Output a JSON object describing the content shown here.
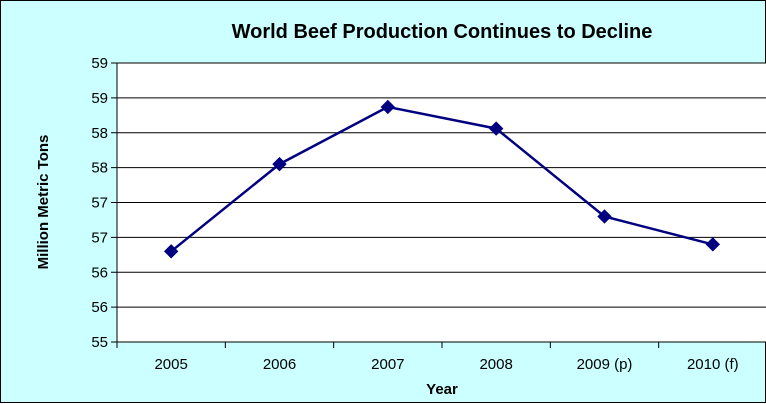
{
  "chart_data": {
    "type": "line",
    "title": "World Beef Production Continues to Decline",
    "xlabel": "Year",
    "ylabel": "Million Metric Tons",
    "categories": [
      "2005",
      "2006",
      "2007",
      "2008",
      "2009 (p)",
      "2010 (f)"
    ],
    "series": [
      {
        "values": [
          56.3,
          57.55,
          58.37,
          58.06,
          56.8,
          56.4
        ]
      }
    ],
    "ylim": [
      55,
      59
    ],
    "y_tick_labels": [
      "55",
      "56",
      "56",
      "57",
      "57",
      "58",
      "58",
      "59",
      "59"
    ],
    "grid": "horizontal",
    "colors": {
      "background": "#ccffff",
      "plot_area": "#ffffff",
      "line": "#000080",
      "marker": "#000080"
    }
  }
}
